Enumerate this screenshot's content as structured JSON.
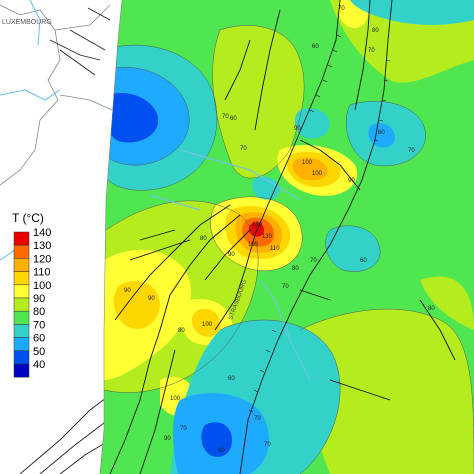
{
  "map": {
    "country_label": "LUXEMBOURG",
    "city_label": "STRASBOURG",
    "palette": {
      "c140": "#e60000",
      "c130": "#ff6a00",
      "c120": "#ffb000",
      "c110": "#ffd700",
      "c100": "#ffff33",
      "c90": "#b4ec1e",
      "c80": "#50e650",
      "c70": "#32d2c8",
      "c60": "#1eaaff",
      "c50": "#0050f0",
      "c40": "#0000c0"
    },
    "contour_labels": [
      "70",
      "80",
      "70",
      "60",
      "60",
      "70",
      "70",
      "100",
      "90",
      "100",
      "70",
      "90",
      "130",
      "120",
      "110",
      "100",
      "90",
      "80",
      "70",
      "70",
      "100",
      "100",
      "90",
      "80",
      "90",
      "60",
      "70",
      "90",
      "70",
      "60",
      "70",
      "80",
      "60",
      "60",
      "80"
    ]
  },
  "legend": {
    "title": "T (°C)",
    "entries": [
      {
        "value": "140",
        "color": "#e60000"
      },
      {
        "value": "130",
        "color": "#ff6a00"
      },
      {
        "value": "120",
        "color": "#ffb000"
      },
      {
        "value": "110",
        "color": "#ffd700"
      },
      {
        "value": "100",
        "color": "#ffff33"
      },
      {
        "value": "90",
        "color": "#b4ec1e"
      },
      {
        "value": "80",
        "color": "#50e650"
      },
      {
        "value": "70",
        "color": "#32d2c8"
      },
      {
        "value": "60",
        "color": "#1eaaff"
      },
      {
        "value": "50",
        "color": "#0050f0"
      },
      {
        "value": "40",
        "color": "#0000c0"
      }
    ]
  }
}
